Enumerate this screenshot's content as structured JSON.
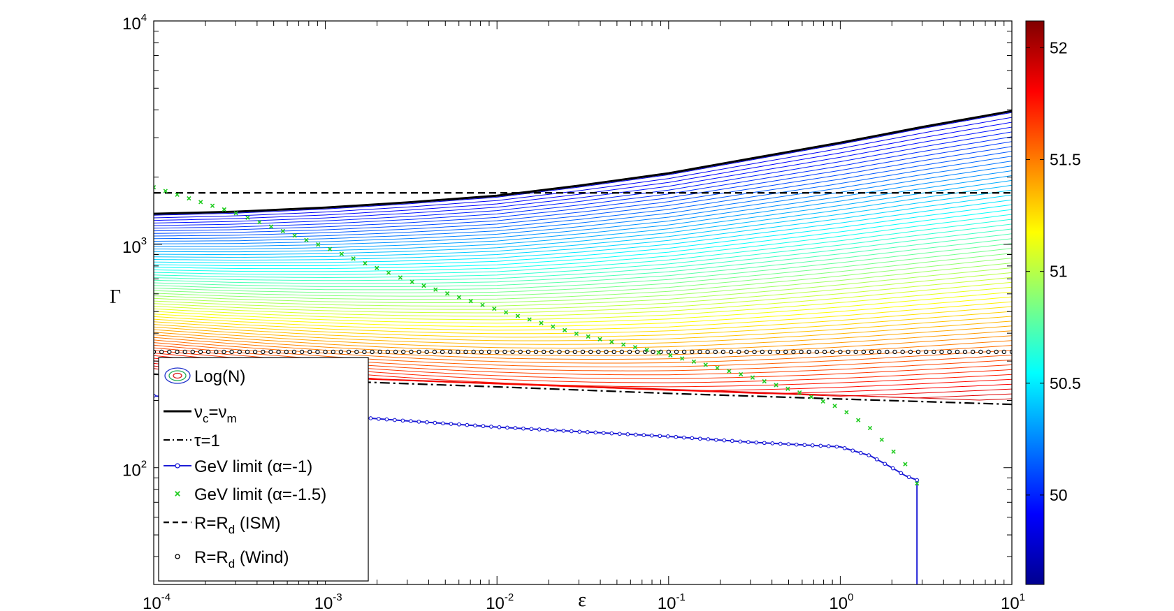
{
  "chart_data": {
    "type": "line",
    "x_scale": "log",
    "y_scale": "log",
    "xlim": [
      0.0001,
      10
    ],
    "ylim": [
      30,
      10000
    ],
    "xlabel": "ε",
    "ylabel": "Γ",
    "x_ticks": [
      {
        "base": "10",
        "exp": "-4",
        "value": 0.0001
      },
      {
        "base": "10",
        "exp": "-3",
        "value": 0.001
      },
      {
        "base": "10",
        "exp": "-2",
        "value": 0.01
      },
      {
        "base": "10",
        "exp": "-1",
        "value": 0.1
      },
      {
        "base": "10",
        "exp": "0",
        "value": 1
      },
      {
        "base": "10",
        "exp": "1",
        "value": 10
      }
    ],
    "y_ticks": [
      {
        "base": "10",
        "exp": "2",
        "value": 100
      },
      {
        "base": "10",
        "exp": "3",
        "value": 1000
      },
      {
        "base": "10",
        "exp": "4",
        "value": 10000
      }
    ],
    "colorbar": {
      "label_ticks": [
        "50",
        "50.5",
        "51",
        "51.5",
        "52"
      ],
      "tick_values": [
        50,
        50.5,
        51,
        51.5,
        52
      ],
      "range": [
        49.6,
        52.12
      ]
    },
    "contours": {
      "name": "Log(N)",
      "count": 60,
      "colormap": "jet",
      "note_range_gamma": [
        265,
        3900
      ]
    },
    "series": [
      {
        "name": "ν_c=ν_m",
        "style": "solid-black",
        "x": [
          0.0001,
          0.0003,
          0.001,
          0.003,
          0.01,
          0.03,
          0.1,
          0.3,
          1,
          3,
          10
        ],
        "y": [
          1370,
          1400,
          1460,
          1540,
          1650,
          1830,
          2080,
          2420,
          2850,
          3350,
          3950
        ]
      },
      {
        "name": "τ=1",
        "style": "dashdot-black",
        "x": [
          0.0001,
          0.001,
          0.01,
          0.1,
          1,
          10
        ],
        "y": [
          262,
          245,
          230,
          215,
          203,
          192
        ]
      },
      {
        "name": "GeV limit (α=-1)",
        "style": "blue-line-dots",
        "x": [
          0.0001,
          0.0003,
          0.001,
          0.003,
          0.01,
          0.03,
          0.1,
          0.3,
          1,
          1.5,
          2,
          2.4,
          2.8,
          2.8
        ],
        "y": [
          210,
          190,
          172,
          162,
          152,
          145,
          138,
          130,
          124,
          113,
          100,
          92,
          88,
          30
        ]
      },
      {
        "name": "GeV limit (α=-1.5)",
        "style": "green-crosses",
        "x": [
          0.0001,
          0.0003,
          0.001,
          0.003,
          0.01,
          0.03,
          0.1,
          0.3,
          0.6,
          1,
          1.5,
          2,
          2.5,
          2.8
        ],
        "y": [
          1800,
          1380,
          970,
          690,
          510,
          395,
          320,
          255,
          215,
          185,
          150,
          120,
          100,
          85
        ]
      },
      {
        "name": "R=R_d (ISM)",
        "style": "dashed-black",
        "x": [
          0.0001,
          10
        ],
        "y": [
          1700,
          1700
        ]
      },
      {
        "name": "R=R_d (Wind)",
        "style": "open-circles-black",
        "x": [
          0.0001,
          10
        ],
        "y": [
          330,
          330
        ]
      }
    ],
    "legend": {
      "placement": "bottom-left",
      "entries": [
        {
          "label": "Log(N)",
          "marker": "contour-ellipse"
        },
        {
          "label_main": "ν",
          "label_sub": "c",
          "label_mid": "=ν",
          "label_sub2": "m",
          "marker": "solid-black"
        },
        {
          "label": "τ=1",
          "marker": "dashdot-black"
        },
        {
          "label": "GeV limit (α=-1)",
          "marker": "blue-line-dots"
        },
        {
          "label": "GeV limit (α=-1.5)",
          "marker": "green-crosses"
        },
        {
          "label_main": "R=R",
          "label_sub": "d",
          "label_tail": " (ISM)",
          "marker": "dashed-black"
        },
        {
          "label_main": "R=R",
          "label_sub": "d",
          "label_tail": " (Wind)",
          "marker": "open-circles-black"
        }
      ]
    },
    "colors": {
      "blue_line": "#1c1cd6",
      "green_cross": "#22cc22",
      "black": "#000000"
    }
  }
}
